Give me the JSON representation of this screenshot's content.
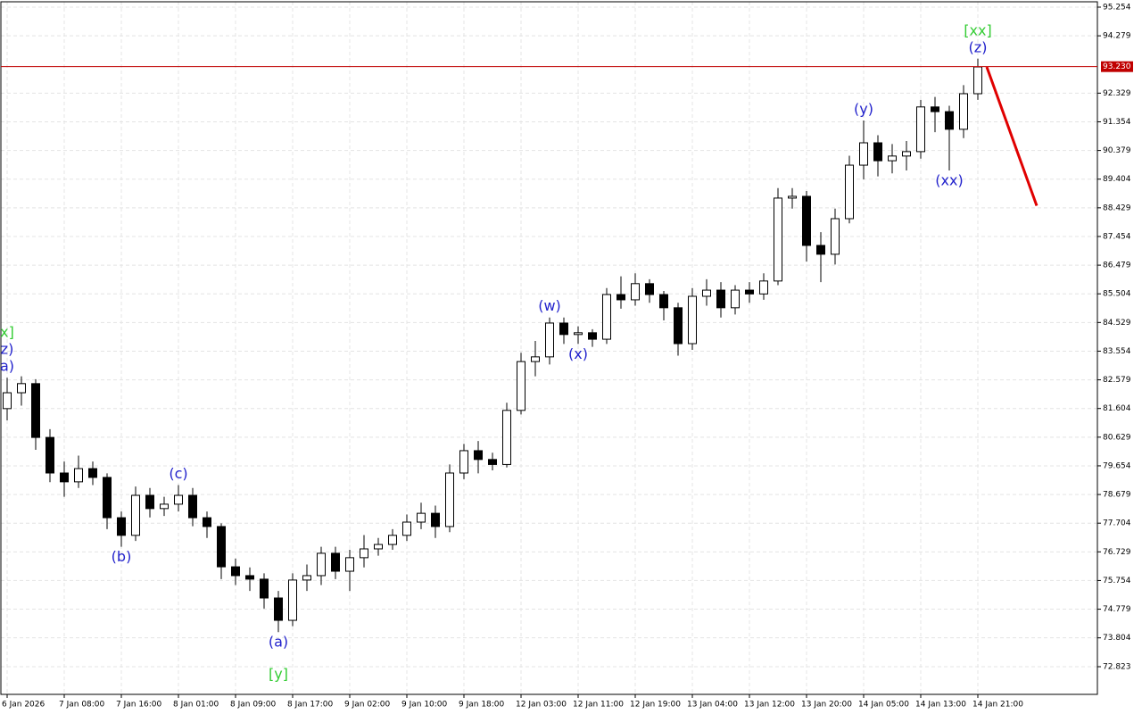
{
  "chart_data": {
    "type": "candlestick",
    "categories": [
      "6 Jan 2026",
      null,
      null,
      null,
      "7 Jan 08:00",
      null,
      null,
      null,
      "7 Jan 16:00",
      null,
      null,
      null,
      "8 Jan 01:00",
      null,
      null,
      null,
      "8 Jan 09:00",
      null,
      null,
      null,
      "8 Jan 17:00",
      null,
      null,
      null,
      "9 Jan 02:00",
      null,
      null,
      null,
      "9 Jan 10:00",
      null,
      null,
      null,
      "9 Jan 18:00",
      null,
      null,
      null,
      "12 Jan 03:00",
      null,
      null,
      null,
      "12 Jan 11:00",
      null,
      null,
      null,
      "12 Jan 19:00",
      null,
      null,
      null,
      "13 Jan 04:00",
      null,
      null,
      null,
      "13 Jan 12:00",
      null,
      null,
      null,
      "13 Jan 20:00",
      null,
      null,
      null,
      "14 Jan 05:00",
      null,
      null,
      null,
      "14 Jan 13:00",
      null,
      null,
      null,
      "14 Jan 21:00"
    ],
    "open": [
      81.6,
      82.14,
      82.45,
      80.62,
      79.41,
      79.11,
      79.56,
      79.26,
      77.89,
      77.29,
      78.65,
      78.2,
      78.35,
      78.65,
      77.89,
      77.59,
      76.22,
      75.92,
      75.8,
      75.16,
      74.4,
      75.77,
      75.92,
      76.68,
      76.07,
      76.53,
      76.83,
      76.98,
      77.29,
      77.74,
      78.04,
      77.59,
      79.41,
      80.17,
      79.87,
      79.7,
      81.54,
      83.2,
      83.36,
      84.51,
      84.12,
      84.18,
      83.96,
      85.48,
      85.3,
      85.85,
      85.48,
      85.03,
      83.81,
      85.42,
      85.63,
      85.03,
      85.63,
      85.5,
      85.94,
      88.76,
      88.82,
      87.15,
      86.85,
      88.06,
      89.88,
      90.64,
      90.03,
      90.19,
      90.34,
      91.86,
      91.7,
      91.1,
      92.31
    ],
    "high": [
      82.65,
      82.7,
      82.6,
      80.9,
      79.8,
      80.0,
      79.8,
      79.4,
      78.1,
      78.95,
      78.9,
      78.6,
      79.0,
      78.9,
      78.1,
      77.7,
      76.5,
      76.2,
      76.0,
      75.4,
      76.0,
      76.3,
      76.9,
      76.9,
      76.8,
      77.3,
      77.2,
      77.5,
      78.0,
      78.4,
      78.3,
      79.7,
      80.4,
      80.5,
      80.1,
      81.8,
      83.5,
      83.9,
      84.7,
      84.7,
      84.4,
      84.3,
      85.7,
      86.1,
      86.2,
      86.0,
      85.6,
      85.2,
      85.7,
      86.0,
      85.9,
      85.8,
      85.9,
      86.2,
      89.1,
      89.1,
      89.0,
      87.6,
      88.4,
      90.2,
      91.4,
      90.9,
      90.6,
      90.7,
      92.1,
      92.2,
      91.9,
      92.6,
      93.5
    ],
    "low": [
      81.2,
      81.7,
      80.2,
      79.1,
      78.6,
      78.9,
      79.0,
      77.5,
      76.9,
      77.1,
      77.9,
      77.95,
      78.1,
      77.6,
      77.2,
      75.8,
      75.6,
      75.4,
      74.8,
      74.0,
      74.2,
      75.4,
      75.6,
      75.8,
      75.4,
      76.2,
      76.6,
      76.8,
      77.1,
      77.5,
      77.2,
      77.4,
      79.2,
      79.4,
      79.5,
      79.6,
      81.4,
      82.7,
      83.1,
      83.8,
      83.8,
      83.7,
      83.8,
      85.0,
      85.1,
      85.2,
      84.6,
      83.4,
      83.6,
      85.1,
      84.7,
      84.8,
      85.2,
      85.3,
      85.8,
      88.4,
      86.6,
      85.9,
      86.5,
      87.9,
      89.4,
      89.5,
      89.6,
      89.7,
      90.1,
      91.0,
      89.7,
      90.8,
      92.1
    ],
    "close": [
      82.14,
      82.45,
      80.62,
      79.41,
      79.11,
      79.56,
      79.26,
      77.89,
      77.29,
      78.65,
      78.2,
      78.35,
      78.65,
      77.89,
      77.59,
      76.22,
      75.92,
      75.8,
      75.16,
      74.4,
      75.77,
      75.92,
      76.68,
      76.07,
      76.53,
      76.83,
      76.98,
      77.29,
      77.74,
      78.04,
      77.59,
      79.41,
      80.17,
      79.87,
      79.7,
      81.54,
      83.2,
      83.36,
      84.51,
      84.12,
      84.18,
      83.96,
      85.48,
      85.3,
      85.85,
      85.48,
      85.03,
      83.81,
      85.42,
      85.63,
      85.03,
      85.63,
      85.5,
      85.94,
      88.76,
      88.82,
      87.15,
      86.85,
      88.06,
      89.88,
      90.64,
      90.03,
      90.19,
      90.34,
      91.86,
      91.7,
      91.1,
      92.31,
      93.22
    ],
    "ylim": [
      71.882,
      95.436
    ],
    "yticks": [
      95.254,
      94.279,
      92.329,
      91.354,
      90.379,
      89.404,
      88.429,
      87.454,
      86.479,
      85.504,
      84.529,
      83.554,
      82.579,
      81.604,
      80.629,
      79.654,
      78.679,
      77.704,
      76.729,
      75.754,
      74.779,
      73.804,
      72.823
    ],
    "grid": true,
    "current_price": {
      "value": 93.23,
      "label": "93.230",
      "color": "#c00000"
    },
    "forecast": {
      "prices": [
        93.22,
        88.5
      ],
      "color": "#e00000"
    },
    "wave_labels": [
      {
        "candle": 0,
        "side": "above",
        "lines": [
          {
            "text": "x]",
            "color": "#33cc33"
          },
          {
            "text": "z)",
            "color": "#2222cc"
          },
          {
            "text": "a)",
            "color": "#2222cc"
          }
        ]
      },
      {
        "candle": 8,
        "side": "below",
        "lines": [
          {
            "text": "(b)",
            "color": "#2222cc"
          }
        ]
      },
      {
        "candle": 12,
        "side": "above",
        "lines": [
          {
            "text": "(c)",
            "color": "#2222cc"
          }
        ]
      },
      {
        "candle": 19,
        "side": "below",
        "lines": [
          {
            "text": "(a)",
            "color": "#2222cc"
          },
          {
            "text": "[y]",
            "color": "#33cc33"
          }
        ]
      },
      {
        "candle": 38,
        "side": "above",
        "lines": [
          {
            "text": "(w)",
            "color": "#2222cc"
          }
        ]
      },
      {
        "candle": 40,
        "side": "below",
        "lines": [
          {
            "text": "(x)",
            "color": "#2222cc"
          }
        ]
      },
      {
        "candle": 60,
        "side": "above",
        "lines": [
          {
            "text": "(y)",
            "color": "#2222cc"
          }
        ]
      },
      {
        "candle": 66,
        "side": "below",
        "lines": [
          {
            "text": "(xx)",
            "color": "#2222cc"
          }
        ]
      },
      {
        "candle": 68,
        "side": "above",
        "lines": [
          {
            "text": "[xx]",
            "color": "#33cc33"
          },
          {
            "text": "(z)",
            "color": "#2222cc"
          }
        ]
      }
    ]
  }
}
